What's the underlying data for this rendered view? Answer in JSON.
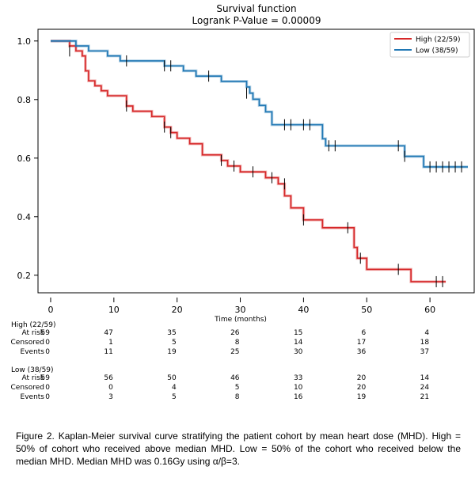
{
  "chart_data": {
    "type": "line",
    "title": "Survival function",
    "subtitle": "Logrank P-Value = 0.00009",
    "xlabel": "Time (months)",
    "ylabel": "",
    "xlim": [
      -2,
      67
    ],
    "ylim": [
      0.14,
      1.04
    ],
    "x_ticks": [
      0,
      10,
      20,
      30,
      40,
      50,
      60
    ],
    "y_ticks": [
      0.2,
      0.4,
      0.6,
      0.8,
      1.0
    ],
    "y_tick_labels": [
      "0.2",
      "0.4",
      "0.6",
      "0.8",
      "1.0"
    ],
    "grid": false,
    "legend_position": "top-right",
    "series": [
      {
        "name": "High (22/59)",
        "color": "#d62728",
        "steps": [
          [
            0,
            1.0
          ],
          [
            3,
            0.983
          ],
          [
            4,
            0.966
          ],
          [
            5,
            0.949
          ],
          [
            5.5,
            0.898
          ],
          [
            6,
            0.864
          ],
          [
            7,
            0.847
          ],
          [
            8,
            0.83
          ],
          [
            9,
            0.813
          ],
          [
            12,
            0.778
          ],
          [
            13,
            0.76
          ],
          [
            16,
            0.742
          ],
          [
            18,
            0.706
          ],
          [
            19,
            0.687
          ],
          [
            20,
            0.668
          ],
          [
            22,
            0.649
          ],
          [
            24,
            0.611
          ],
          [
            27,
            0.592
          ],
          [
            28,
            0.573
          ],
          [
            30,
            0.553
          ],
          [
            34,
            0.533
          ],
          [
            36,
            0.512
          ],
          [
            37,
            0.471
          ],
          [
            38,
            0.43
          ],
          [
            40,
            0.389
          ],
          [
            43,
            0.362
          ],
          [
            48,
            0.295
          ],
          [
            48.5,
            0.258
          ],
          [
            50,
            0.22
          ],
          [
            57,
            0.178
          ],
          [
            62.5,
            0.178
          ]
        ],
        "censored": [
          [
            3,
            0.966
          ],
          [
            12,
            0.778
          ],
          [
            18,
            0.706
          ],
          [
            19,
            0.687
          ],
          [
            27,
            0.592
          ],
          [
            29,
            0.573
          ],
          [
            32,
            0.553
          ],
          [
            35,
            0.533
          ],
          [
            37,
            0.512
          ],
          [
            40,
            0.389
          ],
          [
            47,
            0.362
          ],
          [
            49,
            0.258
          ],
          [
            55,
            0.22
          ],
          [
            61,
            0.178
          ],
          [
            62,
            0.178
          ]
        ]
      },
      {
        "name": "Low (38/59)",
        "color": "#1f77b4",
        "steps": [
          [
            0,
            1.0
          ],
          [
            4,
            0.983
          ],
          [
            6,
            0.966
          ],
          [
            9,
            0.949
          ],
          [
            11,
            0.932
          ],
          [
            18,
            0.915
          ],
          [
            21,
            0.898
          ],
          [
            23,
            0.88
          ],
          [
            27,
            0.862
          ],
          [
            31,
            0.843
          ],
          [
            31.5,
            0.822
          ],
          [
            32,
            0.801
          ],
          [
            33,
            0.78
          ],
          [
            34,
            0.758
          ],
          [
            35,
            0.714
          ],
          [
            43,
            0.666
          ],
          [
            43.5,
            0.642
          ],
          [
            56,
            0.606
          ],
          [
            59,
            0.57
          ],
          [
            66,
            0.57
          ]
        ],
        "censored": [
          [
            12,
            0.932
          ],
          [
            18,
            0.915
          ],
          [
            19,
            0.915
          ],
          [
            25,
            0.88
          ],
          [
            31,
            0.822
          ],
          [
            37,
            0.714
          ],
          [
            38,
            0.714
          ],
          [
            40,
            0.714
          ],
          [
            41,
            0.714
          ],
          [
            44,
            0.642
          ],
          [
            45,
            0.642
          ],
          [
            55,
            0.642
          ],
          [
            56,
            0.606
          ],
          [
            60,
            0.57
          ],
          [
            61,
            0.57
          ],
          [
            62,
            0.57
          ],
          [
            63,
            0.57
          ],
          [
            64,
            0.57
          ],
          [
            65,
            0.57
          ]
        ]
      }
    ]
  },
  "risk_table": {
    "groups": [
      {
        "label": "High (22/59)",
        "rows": [
          {
            "label": "At risk",
            "values": [
              "59",
              "47",
              "35",
              "26",
              "15",
              "6",
              "4"
            ]
          },
          {
            "label": "Censored",
            "values": [
              "0",
              "1",
              "5",
              "8",
              "14",
              "17",
              "18"
            ]
          },
          {
            "label": "Events",
            "values": [
              "0",
              "11",
              "19",
              "25",
              "30",
              "36",
              "37"
            ]
          }
        ]
      },
      {
        "label": "Low (38/59)",
        "rows": [
          {
            "label": "At risk",
            "values": [
              "59",
              "56",
              "50",
              "46",
              "33",
              "20",
              "14"
            ]
          },
          {
            "label": "Censored",
            "values": [
              "0",
              "0",
              "4",
              "5",
              "10",
              "20",
              "24"
            ]
          },
          {
            "label": "Events",
            "values": [
              "0",
              "3",
              "5",
              "8",
              "16",
              "19",
              "21"
            ]
          }
        ]
      }
    ]
  },
  "caption": "Figure 2. Kaplan-Meier survival curve stratifying the patient cohort by mean heart dose (MHD). High = 50% of cohort who received above median MHD. Low = 50% of the cohort who received below the median MHD. Median MHD was 0.16Gy using α/β=3."
}
